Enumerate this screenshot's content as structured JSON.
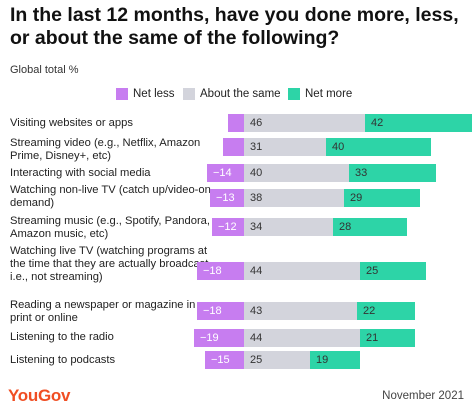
{
  "title": "In the last 12 months, have you done more, less, or about the same of the following?",
  "subtitle": "Global total %",
  "colors": {
    "net_less": "#c77df0",
    "about_same": "#d3d4dc",
    "net_more": "#2dd4a7",
    "text_on_light": "#333333",
    "text_on_dark": "#ffffff"
  },
  "chart_data": {
    "type": "bar",
    "orientation": "horizontal",
    "stacked": true,
    "legend": [
      "Net less",
      "About the same",
      "Net more"
    ],
    "legend_position": "top",
    "categories": [
      "Visiting websites or apps",
      "Streaming video (e.g., Netflix, Amazon Prime, Disney+, etc)",
      "Interacting with social media",
      "Watching non-live TV (catch up/video-on-demand)",
      "Streaming music (e.g., Spotify, Pandora, Amazon music, etc)",
      "Watching live TV (watching programs at the time that they are actually broadcast i.e., not streaming)",
      "Reading a newspaper or magazine in print or online",
      "Listening to the radio",
      "Listening to podcasts"
    ],
    "series": [
      {
        "name": "Net less",
        "values": [
          -6,
          -8,
          -14,
          -13,
          -12,
          -18,
          -18,
          -19,
          -15
        ],
        "labels": [
          "",
          "",
          "−14",
          "−13",
          "−12",
          "−18",
          "−18",
          "−19",
          "−15"
        ]
      },
      {
        "name": "About the same",
        "values": [
          46,
          31,
          40,
          38,
          34,
          44,
          43,
          44,
          25
        ],
        "labels": [
          "46",
          "31",
          "40",
          "38",
          "34",
          "44",
          "43",
          "44",
          "25"
        ]
      },
      {
        "name": "Net more",
        "values": [
          42,
          40,
          33,
          29,
          28,
          25,
          22,
          21,
          19
        ],
        "labels": [
          "42",
          "40",
          "33",
          "29",
          "28",
          "25",
          "22",
          "21",
          "19"
        ]
      }
    ],
    "grid": false
  },
  "footer": {
    "logo": "YouGov",
    "date": "November 2021"
  }
}
